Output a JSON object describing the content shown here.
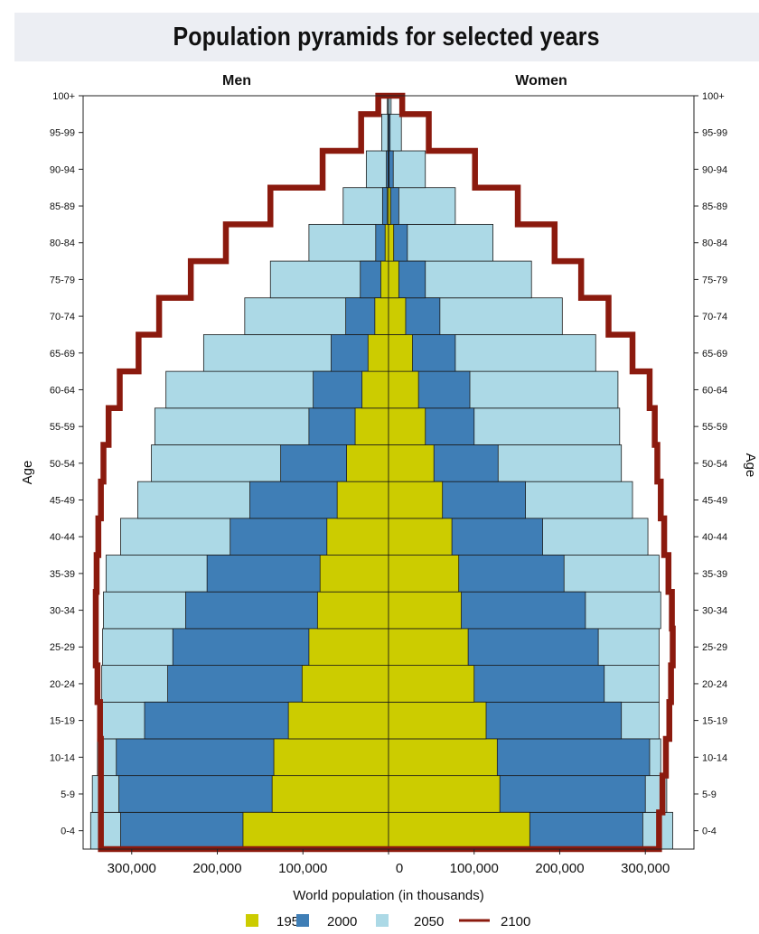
{
  "chart_data": {
    "type": "bar",
    "title": "Population pyramids for selected years",
    "panels": [
      "Men",
      "Women"
    ],
    "ylabel": "Age",
    "xlabel": "World population (in thousands)",
    "categories": [
      "0-4",
      "5-9",
      "10-14",
      "15-19",
      "20-24",
      "25-29",
      "30-34",
      "35-39",
      "40-44",
      "45-49",
      "50-54",
      "55-59",
      "60-64",
      "65-69",
      "70-74",
      "75-79",
      "80-84",
      "85-89",
      "90-94",
      "95-99",
      "100+"
    ],
    "xticks": [
      {
        "label": "300,000",
        "value": -300000
      },
      {
        "label": "200,000",
        "value": -200000
      },
      {
        "label": "100,000",
        "value": -100000
      },
      {
        "label": "0",
        "value": 0
      },
      {
        "label": "100,000",
        "value": 100000
      },
      {
        "label": "200,000",
        "value": 200000
      },
      {
        "label": "300,000",
        "value": 300000
      }
    ],
    "xlim": [
      -350000,
      350000
    ],
    "series": [
      {
        "name": "2050",
        "kind": "bar",
        "color": "#acd9e6",
        "men": [
          348000,
          346000,
          340000,
          337000,
          335000,
          334000,
          333000,
          330000,
          313000,
          293000,
          277000,
          273000,
          260000,
          216000,
          168000,
          138000,
          93000,
          53000,
          26000,
          8000,
          1500
        ],
        "women": [
          332000,
          325000,
          318000,
          316000,
          316000,
          316000,
          318000,
          316000,
          303000,
          285000,
          272000,
          270000,
          268000,
          242000,
          203000,
          167000,
          122000,
          78000,
          43000,
          15000,
          3000
        ]
      },
      {
        "name": "2000",
        "kind": "bar",
        "color": "#3f7eb6",
        "men": [
          313000,
          315000,
          318000,
          285000,
          258000,
          252000,
          237000,
          212000,
          185000,
          162000,
          126000,
          93000,
          88000,
          67000,
          50000,
          33000,
          15000,
          7000,
          2500,
          800,
          100
        ],
        "women": [
          297000,
          300000,
          305000,
          272000,
          252000,
          245000,
          230000,
          205000,
          180000,
          160000,
          128000,
          100000,
          95000,
          78000,
          60000,
          43000,
          22000,
          12000,
          5500,
          1800,
          300
        ]
      },
      {
        "name": "1950",
        "kind": "bar",
        "color": "#cccc00",
        "men": [
          170000,
          136000,
          134000,
          117000,
          101000,
          93000,
          83000,
          80000,
          72000,
          60000,
          49000,
          39000,
          31000,
          24000,
          16000,
          9000,
          4000,
          1500,
          400,
          100,
          10
        ],
        "women": [
          165000,
          130000,
          127000,
          114000,
          100000,
          93000,
          85000,
          82000,
          74000,
          63000,
          53000,
          43000,
          35000,
          28000,
          20000,
          12000,
          6000,
          2500,
          700,
          150,
          20
        ]
      },
      {
        "name": "2100",
        "kind": "line",
        "color": "#8b1a0e",
        "men": [
          336000,
          336000,
          336000,
          337000,
          340000,
          342000,
          342000,
          341000,
          339000,
          336000,
          333000,
          327000,
          314000,
          292000,
          268000,
          231000,
          190000,
          138000,
          77000,
          32000,
          12000
        ],
        "women": [
          316000,
          320000,
          324000,
          328000,
          330000,
          332000,
          331000,
          327000,
          322000,
          318000,
          314000,
          311000,
          305000,
          285000,
          257000,
          225000,
          194000,
          151000,
          101000,
          47000,
          16000
        ]
      }
    ],
    "legend": [
      "1950",
      "2000",
      "2050",
      "2100"
    ],
    "legend_position": "bottom",
    "grid": false
  }
}
